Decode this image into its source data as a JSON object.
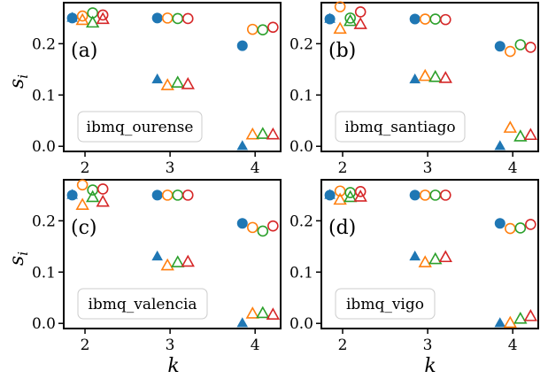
{
  "colors": {
    "blue": "#1f77b4",
    "orange": "#ff7f0e",
    "green": "#2ca02c",
    "red": "#d62728"
  },
  "chart_data": [
    {
      "type": "scatter",
      "panel_label": "(a)",
      "device": "ibmq_ourense",
      "xlabel": "",
      "ylabel": "s_i",
      "xticks": [
        "2",
        "3",
        "4"
      ],
      "yticks": [
        "0.0",
        "0.1",
        "0.2"
      ],
      "xlim": [
        1.75,
        4.3
      ],
      "ylim": [
        -0.01,
        0.28
      ],
      "series": [
        {
          "marker": "filled-circle",
          "color": "#1f77b4",
          "x": [
            1.85,
            2.85,
            3.85
          ],
          "y": [
            0.25,
            0.25,
            0.196
          ]
        },
        {
          "marker": "open-circle",
          "color": "#ff7f0e",
          "x": [
            1.97,
            2.97,
            3.97
          ],
          "y": [
            0.254,
            0.25,
            0.228
          ]
        },
        {
          "marker": "open-circle",
          "color": "#2ca02c",
          "x": [
            2.09,
            3.09,
            4.09
          ],
          "y": [
            0.26,
            0.249,
            0.227
          ]
        },
        {
          "marker": "open-circle",
          "color": "#d62728",
          "x": [
            2.21,
            3.21,
            4.21
          ],
          "y": [
            0.256,
            0.249,
            0.232
          ]
        },
        {
          "marker": "filled-triangle",
          "color": "#1f77b4",
          "x": [
            1.85,
            2.85,
            3.85
          ],
          "y": [
            0.25,
            0.13,
            0.0
          ]
        },
        {
          "marker": "open-triangle",
          "color": "#ff7f0e",
          "x": [
            1.97,
            2.97,
            3.97
          ],
          "y": [
            0.245,
            0.118,
            0.022
          ]
        },
        {
          "marker": "open-triangle",
          "color": "#2ca02c",
          "x": [
            2.09,
            3.09,
            4.09
          ],
          "y": [
            0.24,
            0.123,
            0.023
          ]
        },
        {
          "marker": "open-triangle",
          "color": "#d62728",
          "x": [
            2.21,
            3.21,
            4.21
          ],
          "y": [
            0.247,
            0.12,
            0.022
          ]
        }
      ]
    },
    {
      "type": "scatter",
      "panel_label": "(b)",
      "device": "ibmq_santiago",
      "xlabel": "",
      "ylabel": "",
      "xticks": [
        "2",
        "3",
        "4"
      ],
      "yticks": [
        "0.0",
        "0.1",
        "0.2"
      ],
      "xlim": [
        1.75,
        4.3
      ],
      "ylim": [
        -0.01,
        0.28
      ],
      "series": [
        {
          "marker": "filled-circle",
          "color": "#1f77b4",
          "x": [
            1.85,
            2.85,
            3.85
          ],
          "y": [
            0.248,
            0.248,
            0.195
          ]
        },
        {
          "marker": "open-circle",
          "color": "#ff7f0e",
          "x": [
            1.97,
            2.97,
            3.97
          ],
          "y": [
            0.272,
            0.248,
            0.185
          ]
        },
        {
          "marker": "open-circle",
          "color": "#2ca02c",
          "x": [
            2.09,
            3.09,
            4.09
          ],
          "y": [
            0.25,
            0.248,
            0.198
          ]
        },
        {
          "marker": "open-circle",
          "color": "#d62728",
          "x": [
            2.21,
            3.21,
            4.21
          ],
          "y": [
            0.262,
            0.247,
            0.193
          ]
        },
        {
          "marker": "filled-triangle",
          "color": "#1f77b4",
          "x": [
            1.85,
            2.85,
            3.85
          ],
          "y": [
            0.248,
            0.13,
            0.0
          ]
        },
        {
          "marker": "open-triangle",
          "color": "#ff7f0e",
          "x": [
            1.97,
            2.97,
            3.97
          ],
          "y": [
            0.228,
            0.136,
            0.035
          ]
        },
        {
          "marker": "open-triangle",
          "color": "#2ca02c",
          "x": [
            2.09,
            3.09,
            4.09
          ],
          "y": [
            0.243,
            0.134,
            0.018
          ]
        },
        {
          "marker": "open-triangle",
          "color": "#d62728",
          "x": [
            2.21,
            3.21,
            4.21
          ],
          "y": [
            0.237,
            0.132,
            0.021
          ]
        }
      ]
    },
    {
      "type": "scatter",
      "panel_label": "(c)",
      "device": "ibmq_valencia",
      "xlabel": "k",
      "ylabel": "s_i",
      "xticks": [
        "2",
        "3",
        "4"
      ],
      "yticks": [
        "0.0",
        "0.1",
        "0.2"
      ],
      "xlim": [
        1.75,
        4.3
      ],
      "ylim": [
        -0.01,
        0.28
      ],
      "series": [
        {
          "marker": "filled-circle",
          "color": "#1f77b4",
          "x": [
            1.85,
            2.85,
            3.85
          ],
          "y": [
            0.25,
            0.25,
            0.195
          ]
        },
        {
          "marker": "open-circle",
          "color": "#ff7f0e",
          "x": [
            1.97,
            2.97,
            3.97
          ],
          "y": [
            0.27,
            0.25,
            0.187
          ]
        },
        {
          "marker": "open-circle",
          "color": "#2ca02c",
          "x": [
            2.09,
            3.09,
            4.09
          ],
          "y": [
            0.26,
            0.25,
            0.18
          ]
        },
        {
          "marker": "open-circle",
          "color": "#d62728",
          "x": [
            2.21,
            3.21,
            4.21
          ],
          "y": [
            0.262,
            0.25,
            0.19
          ]
        },
        {
          "marker": "filled-triangle",
          "color": "#1f77b4",
          "x": [
            1.85,
            2.85,
            3.85
          ],
          "y": [
            0.25,
            0.13,
            0.0
          ]
        },
        {
          "marker": "open-triangle",
          "color": "#ff7f0e",
          "x": [
            1.97,
            2.97,
            3.97
          ],
          "y": [
            0.23,
            0.112,
            0.018
          ]
        },
        {
          "marker": "open-triangle",
          "color": "#2ca02c",
          "x": [
            2.09,
            3.09,
            4.09
          ],
          "y": [
            0.245,
            0.118,
            0.019
          ]
        },
        {
          "marker": "open-triangle",
          "color": "#d62728",
          "x": [
            2.21,
            3.21,
            4.21
          ],
          "y": [
            0.236,
            0.119,
            0.016
          ]
        }
      ]
    },
    {
      "type": "scatter",
      "panel_label": "(d)",
      "device": "ibmq_vigo",
      "xlabel": "k",
      "ylabel": "",
      "xticks": [
        "2",
        "3",
        "4"
      ],
      "yticks": [
        "0.0",
        "0.1",
        "0.2"
      ],
      "xlim": [
        1.75,
        4.3
      ],
      "ylim": [
        -0.01,
        0.28
      ],
      "series": [
        {
          "marker": "filled-circle",
          "color": "#1f77b4",
          "x": [
            1.85,
            2.85,
            3.85
          ],
          "y": [
            0.25,
            0.25,
            0.195
          ]
        },
        {
          "marker": "open-circle",
          "color": "#ff7f0e",
          "x": [
            1.97,
            2.97,
            3.97
          ],
          "y": [
            0.258,
            0.25,
            0.185
          ]
        },
        {
          "marker": "open-circle",
          "color": "#2ca02c",
          "x": [
            2.09,
            3.09,
            4.09
          ],
          "y": [
            0.255,
            0.25,
            0.186
          ]
        },
        {
          "marker": "open-circle",
          "color": "#d62728",
          "x": [
            2.21,
            3.21,
            4.21
          ],
          "y": [
            0.257,
            0.25,
            0.193
          ]
        },
        {
          "marker": "filled-triangle",
          "color": "#1f77b4",
          "x": [
            1.85,
            2.85,
            3.85
          ],
          "y": [
            0.25,
            0.13,
            0.0
          ]
        },
        {
          "marker": "open-triangle",
          "color": "#ff7f0e",
          "x": [
            1.97,
            2.97,
            3.97
          ],
          "y": [
            0.24,
            0.118,
            0.0
          ]
        },
        {
          "marker": "open-triangle",
          "color": "#2ca02c",
          "x": [
            2.09,
            3.09,
            4.09
          ],
          "y": [
            0.245,
            0.124,
            0.008
          ]
        },
        {
          "marker": "open-triangle",
          "color": "#d62728",
          "x": [
            2.21,
            3.21,
            4.21
          ],
          "y": [
            0.246,
            0.128,
            0.013
          ]
        }
      ]
    }
  ]
}
